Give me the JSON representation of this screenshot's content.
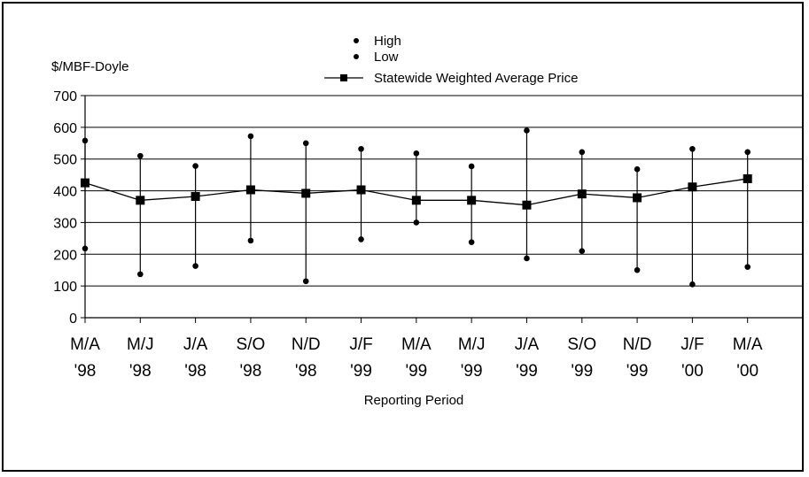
{
  "chart_data": {
    "type": "line",
    "ylabel": "$/MBF-Doyle",
    "xlabel": "Reporting Period",
    "ylim": [
      0,
      700
    ],
    "yticks": [
      0,
      100,
      200,
      300,
      400,
      500,
      600,
      700
    ],
    "grid": "horizontal",
    "legend_position": "top-center",
    "categories": [
      {
        "line1": "M/A",
        "line2": "'98"
      },
      {
        "line1": "M/J",
        "line2": "'98"
      },
      {
        "line1": "J/A",
        "line2": "'98"
      },
      {
        "line1": "S/O",
        "line2": "'98"
      },
      {
        "line1": "N/D",
        "line2": "'98"
      },
      {
        "line1": "J/F",
        "line2": "'99"
      },
      {
        "line1": "M/A",
        "line2": "'99"
      },
      {
        "line1": "M/J",
        "line2": "'99"
      },
      {
        "line1": "J/A",
        "line2": "'99"
      },
      {
        "line1": "S/O",
        "line2": "'99"
      },
      {
        "line1": "N/D",
        "line2": "'99"
      },
      {
        "line1": "J/F",
        "line2": "'00"
      },
      {
        "line1": "M/A",
        "line2": "'00"
      }
    ],
    "series": [
      {
        "name": "High",
        "marker": "dot",
        "values": [
          558,
          510,
          478,
          572,
          550,
          532,
          518,
          477,
          590,
          522,
          468,
          532,
          522
        ]
      },
      {
        "name": "Low",
        "marker": "dot",
        "values": [
          218,
          137,
          163,
          243,
          115,
          247,
          300,
          238,
          187,
          210,
          150,
          105,
          160
        ]
      },
      {
        "name": "Statewide Weighted Average Price",
        "marker": "square",
        "values": [
          425,
          370,
          382,
          403,
          392,
          403,
          370,
          370,
          355,
          390,
          378,
          412,
          438
        ]
      }
    ]
  }
}
